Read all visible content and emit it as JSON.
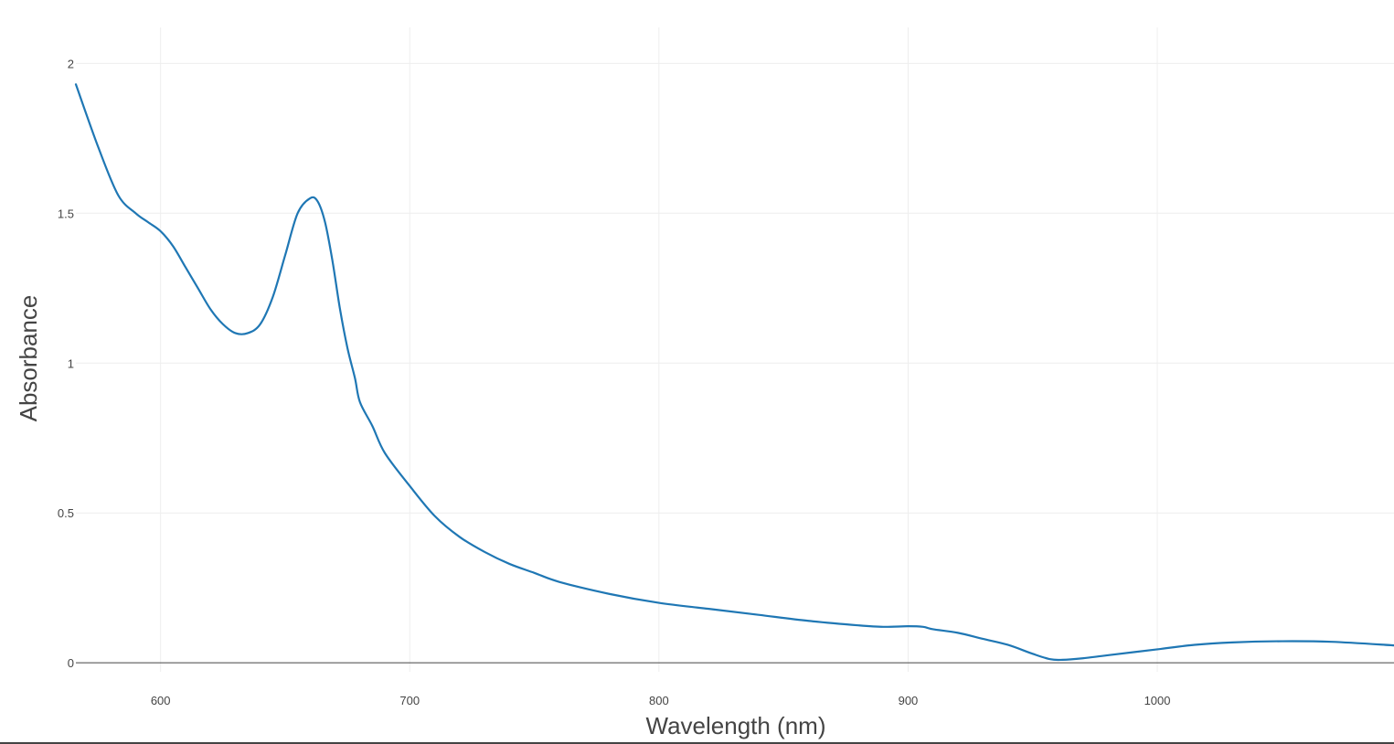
{
  "chart_data": {
    "type": "line",
    "title": "",
    "xlabel": "Wavelength (nm)",
    "ylabel": "Absorbance",
    "xlim": [
      566,
      1095
    ],
    "ylim": [
      -0.03,
      2.12
    ],
    "x_ticks": [
      600,
      700,
      800,
      900,
      1000
    ],
    "x_tick_labels": [
      "600",
      "700",
      "800",
      "900",
      "1000"
    ],
    "y_ticks": [
      0,
      0.5,
      1,
      1.5,
      2
    ],
    "y_tick_labels": [
      "0",
      "0.5",
      "1",
      "1.5",
      "2"
    ],
    "grid": true,
    "legend": "none",
    "series": [
      {
        "color": "#1f77b4",
        "x": [
          566,
          575,
          583,
          590,
          595,
          600,
          605,
          610,
          615,
          620,
          625,
          630,
          635,
          640,
          645,
          650,
          655,
          660,
          663,
          666,
          669,
          672,
          675,
          678,
          680,
          685,
          690,
          700,
          710,
          720,
          730,
          740,
          750,
          760,
          780,
          800,
          820,
          840,
          860,
          880,
          890,
          900,
          906,
          910,
          920,
          930,
          940,
          950,
          957,
          962,
          970,
          980,
          1000,
          1015,
          1030,
          1050,
          1070,
          1095
        ],
        "y": [
          1.93,
          1.72,
          1.56,
          1.5,
          1.47,
          1.44,
          1.39,
          1.32,
          1.25,
          1.18,
          1.13,
          1.1,
          1.1,
          1.13,
          1.22,
          1.36,
          1.5,
          1.55,
          1.54,
          1.47,
          1.34,
          1.18,
          1.05,
          0.95,
          0.87,
          0.79,
          0.7,
          0.59,
          0.49,
          0.42,
          0.37,
          0.33,
          0.3,
          0.27,
          0.23,
          0.2,
          0.18,
          0.16,
          0.14,
          0.125,
          0.12,
          0.122,
          0.12,
          0.112,
          0.1,
          0.08,
          0.06,
          0.03,
          0.012,
          0.01,
          0.015,
          0.025,
          0.045,
          0.06,
          0.068,
          0.072,
          0.07,
          0.058
        ]
      }
    ]
  }
}
